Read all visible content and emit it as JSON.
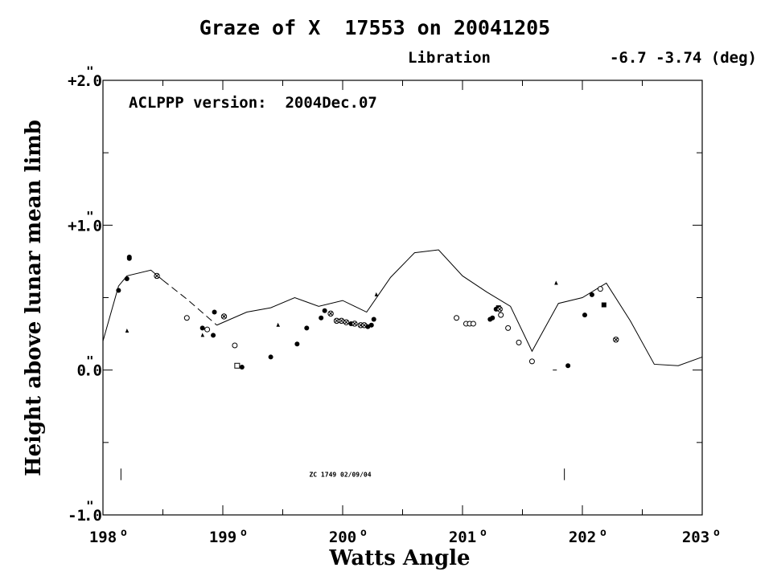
{
  "chart_data": {
    "type": "scatter",
    "title": "Graze of X  17553 on 20041205",
    "libration_label": "Libration",
    "libration_values": "-6.7 -3.74 (deg)",
    "version_label": "ACLPPP version:  2004Dec.07",
    "xlabel": "Watts Angle",
    "ylabel": "Height above lunar mean limb",
    "xlim": [
      198,
      203
    ],
    "ylim": [
      -1,
      2
    ],
    "x_ticks": [
      {
        "value": 198,
        "label": "198",
        "deg": "o"
      },
      {
        "value": 199,
        "label": "199",
        "deg": "o"
      },
      {
        "value": 200,
        "label": "200",
        "deg": "o"
      },
      {
        "value": 201,
        "label": "201",
        "deg": "o"
      },
      {
        "value": 202,
        "label": "202",
        "deg": "o"
      },
      {
        "value": 203,
        "label": "203",
        "deg": "o"
      }
    ],
    "y_ticks": [
      {
        "value": 2,
        "label": "+2",
        "sec": "\"",
        "frac": ".0"
      },
      {
        "value": 1,
        "label": "+1",
        "sec": "\"",
        "frac": ".0"
      },
      {
        "value": 0,
        "label": "0",
        "sec": "\"",
        "frac": ".0"
      },
      {
        "value": -1,
        "label": "-1",
        "sec": "\"",
        "frac": ".0"
      }
    ],
    "annotation": {
      "text": "ZC 1749 02/09/04",
      "x": 199.98,
      "y": -0.72
    },
    "markers_ticks": [
      198.15,
      201.85
    ],
    "profile": {
      "solid": [
        [
          [
            198.0,
            0.2
          ],
          [
            198.13,
            0.58
          ],
          [
            198.2,
            0.65
          ],
          [
            198.4,
            0.69
          ],
          [
            198.5,
            0.62
          ]
        ],
        [
          [
            198.95,
            0.31
          ],
          [
            199.2,
            0.4
          ],
          [
            199.4,
            0.43
          ],
          [
            199.6,
            0.5
          ],
          [
            199.8,
            0.44
          ],
          [
            200.0,
            0.48
          ],
          [
            200.2,
            0.4
          ],
          [
            200.4,
            0.64
          ],
          [
            200.6,
            0.81
          ],
          [
            200.8,
            0.83
          ],
          [
            201.0,
            0.65
          ],
          [
            201.2,
            0.54
          ],
          [
            201.4,
            0.44
          ],
          [
            201.58,
            0.13
          ],
          [
            201.8,
            0.46
          ],
          [
            202.0,
            0.5
          ],
          [
            202.2,
            0.6
          ],
          [
            202.4,
            0.34
          ],
          [
            202.6,
            0.04
          ],
          [
            202.8,
            0.03
          ],
          [
            203.0,
            0.09
          ]
        ]
      ],
      "dashed": [
        [
          198.5,
          0.62
        ],
        [
          198.7,
          0.49
        ],
        [
          198.95,
          0.31
        ]
      ]
    },
    "points": [
      {
        "x": 198.13,
        "y": 0.55,
        "m": "filled"
      },
      {
        "x": 198.2,
        "y": 0.63,
        "m": "filled"
      },
      {
        "x": 198.22,
        "y": 0.77,
        "m": "filled"
      },
      {
        "x": 198.22,
        "y": 0.78,
        "m": "filled"
      },
      {
        "x": 198.2,
        "y": 0.27,
        "m": "tri"
      },
      {
        "x": 198.45,
        "y": 0.65,
        "m": "cross"
      },
      {
        "x": 198.7,
        "y": 0.36,
        "m": "open"
      },
      {
        "x": 198.83,
        "y": 0.29,
        "m": "filled"
      },
      {
        "x": 198.83,
        "y": 0.24,
        "m": "tri"
      },
      {
        "x": 198.87,
        "y": 0.28,
        "m": "open"
      },
      {
        "x": 198.92,
        "y": 0.24,
        "m": "filled"
      },
      {
        "x": 198.93,
        "y": 0.4,
        "m": "filled"
      },
      {
        "x": 199.01,
        "y": 0.37,
        "m": "cross"
      },
      {
        "x": 199.1,
        "y": 0.17,
        "m": "open"
      },
      {
        "x": 199.12,
        "y": 0.03,
        "m": "sqopen"
      },
      {
        "x": 199.16,
        "y": 0.02,
        "m": "filled"
      },
      {
        "x": 199.4,
        "y": 0.09,
        "m": "filled"
      },
      {
        "x": 199.46,
        "y": 0.31,
        "m": "tri"
      },
      {
        "x": 199.62,
        "y": 0.18,
        "m": "filled"
      },
      {
        "x": 199.7,
        "y": 0.29,
        "m": "filled"
      },
      {
        "x": 199.82,
        "y": 0.36,
        "m": "filled"
      },
      {
        "x": 199.85,
        "y": 0.41,
        "m": "filled"
      },
      {
        "x": 199.9,
        "y": 0.39,
        "m": "cross"
      },
      {
        "x": 199.95,
        "y": 0.34,
        "m": "cross"
      },
      {
        "x": 199.99,
        "y": 0.34,
        "m": "cross"
      },
      {
        "x": 200.03,
        "y": 0.33,
        "m": "cross"
      },
      {
        "x": 200.07,
        "y": 0.32,
        "m": "filled"
      },
      {
        "x": 200.1,
        "y": 0.32,
        "m": "cross"
      },
      {
        "x": 200.15,
        "y": 0.31,
        "m": "cross"
      },
      {
        "x": 200.18,
        "y": 0.31,
        "m": "cross"
      },
      {
        "x": 200.21,
        "y": 0.3,
        "m": "filled"
      },
      {
        "x": 200.24,
        "y": 0.31,
        "m": "filled"
      },
      {
        "x": 200.26,
        "y": 0.35,
        "m": "filled"
      },
      {
        "x": 200.28,
        "y": 0.52,
        "m": "tri"
      },
      {
        "x": 200.95,
        "y": 0.36,
        "m": "open"
      },
      {
        "x": 201.03,
        "y": 0.32,
        "m": "open"
      },
      {
        "x": 201.06,
        "y": 0.32,
        "m": "open"
      },
      {
        "x": 201.09,
        "y": 0.32,
        "m": "open"
      },
      {
        "x": 201.23,
        "y": 0.35,
        "m": "filled"
      },
      {
        "x": 201.25,
        "y": 0.36,
        "m": "filled"
      },
      {
        "x": 201.28,
        "y": 0.42,
        "m": "filled"
      },
      {
        "x": 201.3,
        "y": 0.43,
        "m": "sq"
      },
      {
        "x": 201.31,
        "y": 0.42,
        "m": "cross"
      },
      {
        "x": 201.32,
        "y": 0.38,
        "m": "open"
      },
      {
        "x": 201.38,
        "y": 0.29,
        "m": "open"
      },
      {
        "x": 201.47,
        "y": 0.19,
        "m": "open"
      },
      {
        "x": 201.58,
        "y": 0.06,
        "m": "open"
      },
      {
        "x": 201.78,
        "y": 0.6,
        "m": "tri"
      },
      {
        "x": 201.77,
        "y": 0.0,
        "m": "tick"
      },
      {
        "x": 201.88,
        "y": 0.03,
        "m": "filled"
      },
      {
        "x": 202.02,
        "y": 0.38,
        "m": "filled"
      },
      {
        "x": 202.08,
        "y": 0.52,
        "m": "filled"
      },
      {
        "x": 202.15,
        "y": 0.56,
        "m": "open"
      },
      {
        "x": 202.18,
        "y": 0.45,
        "m": "sq"
      },
      {
        "x": 202.28,
        "y": 0.21,
        "m": "cross"
      }
    ]
  }
}
